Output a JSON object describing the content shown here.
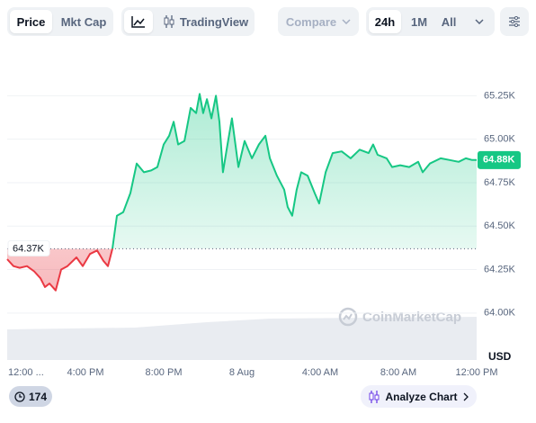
{
  "ui": {
    "tabs": [
      "Price",
      "Mkt Cap"
    ],
    "tradingview": "TradingView",
    "compare": "Compare",
    "ranges": [
      "24h",
      "1M",
      "All"
    ],
    "badge_count": "174",
    "analyze": "Analyze Chart"
  },
  "chart_data": {
    "type": "line",
    "x": [
      0,
      0.32,
      0.64,
      1.01,
      1.38,
      1.7,
      1.93,
      2.16,
      2.48,
      2.76,
      3.08,
      3.54,
      3.86,
      4.23,
      4.6,
      4.92,
      5.15,
      5.38,
      5.61,
      5.93,
      6.3,
      6.62,
      6.99,
      7.36,
      7.68,
      8.0,
      8.28,
      8.51,
      8.74,
      9.06,
      9.38,
      9.66,
      9.84,
      10.02,
      10.21,
      10.44,
      10.67,
      10.85,
      11.03,
      11.22,
      11.49,
      11.82,
      12.14,
      12.51,
      12.87,
      13.2,
      13.43,
      13.79,
      14.16,
      14.34,
      14.57,
      14.8,
      15.03,
      15.36,
      15.72,
      15.95,
      16.28,
      16.64,
      17.1,
      17.56,
      18.02,
      18.48,
      18.71,
      18.94,
      19.4,
      19.68,
      20.09,
      20.55,
      21.01,
      21.24,
      21.61,
      22.16,
      22.62,
      23.08,
      23.45,
      23.77,
      24
    ],
    "values": [
      64310,
      64270,
      64260,
      64270,
      64240,
      64200,
      64150,
      64170,
      64130,
      64250,
      64270,
      64320,
      64270,
      64340,
      64360,
      64300,
      64270,
      64370,
      64560,
      64580,
      64690,
      64860,
      64810,
      64820,
      64840,
      64970,
      65020,
      65100,
      64970,
      64990,
      65180,
      65150,
      65260,
      65150,
      65230,
      65120,
      65250,
      65100,
      64810,
      64940,
      65120,
      64840,
      64990,
      64890,
      64970,
      65020,
      64890,
      64790,
      64710,
      64610,
      64560,
      64710,
      64810,
      64790,
      64690,
      64630,
      64810,
      64920,
      64930,
      64890,
      64940,
      64920,
      64970,
      64910,
      64890,
      64840,
      64850,
      64840,
      64870,
      64810,
      64860,
      64890,
      64880,
      64870,
      64890,
      64880,
      64880
    ],
    "color": "#16c784",
    "down_color": "#ea3943",
    "baseline": {
      "value": 64370,
      "label": "64.37K"
    },
    "last_price": {
      "value": 64880,
      "label": "64.88K"
    },
    "xlim": [
      0,
      24
    ],
    "xticks": [
      {
        "value": 0,
        "label": "12:00 ..."
      },
      {
        "value": 4,
        "label": "4:00 PM"
      },
      {
        "value": 8,
        "label": "8:00 PM"
      },
      {
        "value": 12,
        "label": "8 Aug"
      },
      {
        "value": 16,
        "label": "4:00 AM"
      },
      {
        "value": 20,
        "label": "8:00 AM"
      },
      {
        "value": 24,
        "label": "12:00 PM"
      }
    ],
    "ylim": [
      63730,
      65490
    ],
    "yticks": [
      {
        "value": 64000,
        "label": "64.00K"
      },
      {
        "value": 64250,
        "label": "64.25K"
      },
      {
        "value": 64500,
        "label": "64.50K"
      },
      {
        "value": 64750,
        "label": "64.75K"
      },
      {
        "value": 65000,
        "label": "65.00K"
      },
      {
        "value": 65250,
        "label": "65.25K"
      }
    ],
    "grid": true,
    "unit": "USD",
    "watermark": "CoinMarketCap"
  }
}
